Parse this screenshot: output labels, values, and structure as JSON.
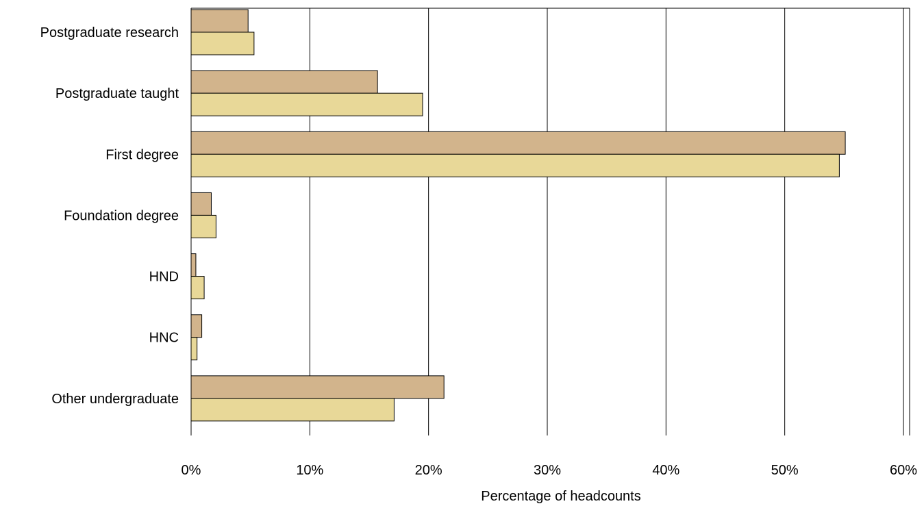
{
  "chart_data": {
    "type": "bar",
    "orientation": "horizontal",
    "title": "",
    "xlabel": "Percentage of headcounts",
    "ylabel": "",
    "xlim": [
      0,
      60
    ],
    "x_ticks": [
      "0%",
      "10%",
      "20%",
      "30%",
      "40%",
      "50%",
      "60%"
    ],
    "x_tick_values": [
      0,
      10,
      20,
      30,
      40,
      50,
      60
    ],
    "grid": "vertical",
    "legend": "none",
    "categories": [
      "Postgraduate research",
      "Postgraduate taught",
      "First degree",
      "Foundation degree",
      "HND",
      "HNC",
      "Other undergraduate"
    ],
    "series": [
      {
        "color": "#D2B48C",
        "values": [
          4.8,
          15.7,
          55.1,
          1.7,
          0.4,
          0.9,
          21.3
        ]
      },
      {
        "color": "#E8D898",
        "values": [
          5.3,
          19.5,
          54.6,
          2.1,
          1.1,
          0.5,
          17.1
        ]
      }
    ]
  }
}
